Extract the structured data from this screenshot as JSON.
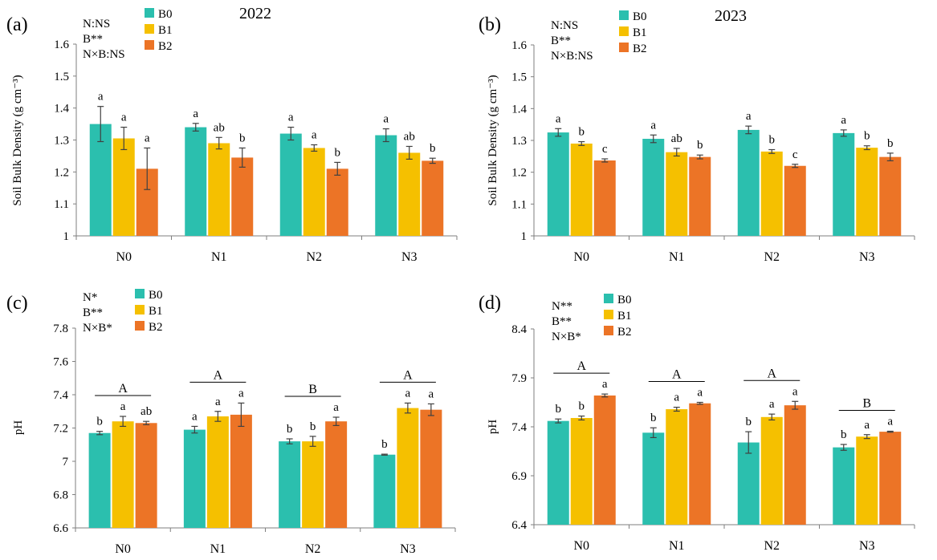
{
  "colors": {
    "B0": "#2bbfae",
    "B1": "#f5c000",
    "B2": "#ec7426",
    "axis": "#7f7f7f",
    "text": "#000000"
  },
  "chart_data": [
    {
      "panel": "(a)",
      "type": "bar",
      "title": "2022",
      "ylabel": "Soil Bulk Density (g cm⁻³)",
      "ylim": [
        1.0,
        1.6
      ],
      "yticks": [
        1,
        1.1,
        1.2,
        1.3,
        1.4,
        1.5,
        1.6
      ],
      "ytick_labels": [
        "1",
        "1.1",
        "1.2",
        "1.3",
        "1.4",
        "1.5",
        "1.6"
      ],
      "categories": [
        "N0",
        "N1",
        "N2",
        "N3"
      ],
      "series": [
        {
          "name": "B0",
          "values": [
            1.35,
            1.34,
            1.32,
            1.315
          ],
          "errors": [
            0.055,
            0.012,
            0.02,
            0.02
          ],
          "letters": [
            "a",
            "a",
            "a",
            "a"
          ]
        },
        {
          "name": "B1",
          "values": [
            1.305,
            1.29,
            1.275,
            1.26
          ],
          "errors": [
            0.035,
            0.018,
            0.01,
            0.02
          ],
          "letters": [
            "a",
            "ab",
            "a",
            "ab"
          ]
        },
        {
          "name": "B2",
          "values": [
            1.21,
            1.245,
            1.21,
            1.235
          ],
          "errors": [
            0.065,
            0.03,
            0.02,
            0.008
          ],
          "letters": [
            "a",
            "b",
            "b",
            "b"
          ]
        }
      ],
      "stats": [
        "N:NS",
        "B**",
        "N×B:NS"
      ],
      "group_letters": []
    },
    {
      "panel": "(b)",
      "type": "bar",
      "title": "2023",
      "ylabel": "Soil Bulk Density (g cm⁻³)",
      "ylim": [
        1.0,
        1.6
      ],
      "yticks": [
        1,
        1.1,
        1.2,
        1.3,
        1.4,
        1.5,
        1.6
      ],
      "ytick_labels": [
        "1",
        "1.1",
        "1.2",
        "1.3",
        "1.4",
        "1.5",
        "1.6"
      ],
      "categories": [
        "N0",
        "N1",
        "N2",
        "N3"
      ],
      "series": [
        {
          "name": "B0",
          "values": [
            1.325,
            1.305,
            1.333,
            1.323
          ],
          "errors": [
            0.012,
            0.012,
            0.012,
            0.01
          ],
          "letters": [
            "a",
            "a",
            "a",
            "a"
          ]
        },
        {
          "name": "B1",
          "values": [
            1.29,
            1.263,
            1.265,
            1.277
          ],
          "errors": [
            0.006,
            0.012,
            0.006,
            0.006
          ],
          "letters": [
            "b",
            "ab",
            "b",
            "b"
          ]
        },
        {
          "name": "B2",
          "values": [
            1.237,
            1.248,
            1.22,
            1.248
          ],
          "errors": [
            0.005,
            0.006,
            0.005,
            0.012
          ],
          "letters": [
            "c",
            "b",
            "c",
            "b"
          ]
        }
      ],
      "stats": [
        "N:NS",
        "B**",
        "N×B:NS"
      ],
      "group_letters": []
    },
    {
      "panel": "(c)",
      "type": "bar",
      "title": "",
      "ylabel": "pH",
      "ylim": [
        6.6,
        7.8
      ],
      "yticks": [
        6.6,
        6.8,
        7.0,
        7.2,
        7.4,
        7.6,
        7.8
      ],
      "ytick_labels": [
        "6.6",
        "6.8",
        "7",
        "7.2",
        "7.4",
        "7.6",
        "7.8"
      ],
      "categories": [
        "N0",
        "N1",
        "N2",
        "N3"
      ],
      "series": [
        {
          "name": "B0",
          "values": [
            7.17,
            7.19,
            7.12,
            7.04
          ],
          "errors": [
            0.01,
            0.02,
            0.015,
            0.003
          ],
          "letters": [
            "b",
            "a",
            "b",
            "b"
          ]
        },
        {
          "name": "B1",
          "values": [
            7.24,
            7.27,
            7.12,
            7.32
          ],
          "errors": [
            0.03,
            0.03,
            0.03,
            0.03
          ],
          "letters": [
            "a",
            "a",
            "b",
            "a"
          ]
        },
        {
          "name": "B2",
          "values": [
            7.23,
            7.28,
            7.24,
            7.31
          ],
          "errors": [
            0.01,
            0.07,
            0.025,
            0.035
          ],
          "letters": [
            "ab",
            "a",
            "a",
            "a"
          ]
        }
      ],
      "stats": [
        "N*",
        "B**",
        "N×B*"
      ],
      "group_letters": [
        "A",
        "A",
        "B",
        "A"
      ]
    },
    {
      "panel": "(d)",
      "type": "bar",
      "title": "",
      "ylabel": "pH",
      "ylim": [
        6.4,
        8.4
      ],
      "yticks": [
        6.4,
        6.9,
        7.4,
        7.9,
        8.4
      ],
      "ytick_labels": [
        "6.4",
        "6.9",
        "7.4",
        "7.9",
        "8.4"
      ],
      "categories": [
        "N0",
        "N1",
        "N2",
        "N3"
      ],
      "series": [
        {
          "name": "B0",
          "values": [
            7.46,
            7.34,
            7.24,
            7.19
          ],
          "errors": [
            0.02,
            0.05,
            0.11,
            0.03
          ],
          "letters": [
            "b",
            "b",
            "b",
            "b"
          ]
        },
        {
          "name": "B1",
          "values": [
            7.49,
            7.58,
            7.5,
            7.3
          ],
          "errors": [
            0.02,
            0.02,
            0.03,
            0.02
          ],
          "letters": [
            "b",
            "a",
            "a",
            "a"
          ]
        },
        {
          "name": "B2",
          "values": [
            7.72,
            7.64,
            7.62,
            7.35
          ],
          "errors": [
            0.015,
            0.01,
            0.04,
            0.005
          ],
          "letters": [
            "a",
            "a",
            "a",
            "a"
          ]
        }
      ],
      "stats": [
        "N**",
        "B**",
        "N×B*"
      ],
      "group_letters": [
        "A",
        "A",
        "A",
        "B"
      ]
    }
  ]
}
